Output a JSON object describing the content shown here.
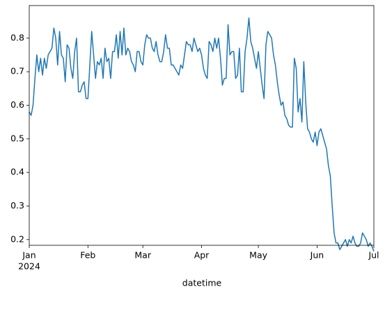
{
  "chart_data": {
    "type": "line",
    "xlabel": "datetime",
    "x_year_label": "2024",
    "grid": false,
    "x": [
      "2024-01-01",
      "2024-01-02",
      "2024-01-03",
      "2024-01-04",
      "2024-01-05",
      "2024-01-06",
      "2024-01-07",
      "2024-01-08",
      "2024-01-09",
      "2024-01-10",
      "2024-01-11",
      "2024-01-12",
      "2024-01-13",
      "2024-01-14",
      "2024-01-15",
      "2024-01-16",
      "2024-01-17",
      "2024-01-18",
      "2024-01-19",
      "2024-01-20",
      "2024-01-21",
      "2024-01-22",
      "2024-01-23",
      "2024-01-24",
      "2024-01-25",
      "2024-01-26",
      "2024-01-27",
      "2024-01-28",
      "2024-01-29",
      "2024-01-30",
      "2024-01-31",
      "2024-02-01",
      "2024-02-02",
      "2024-02-03",
      "2024-02-04",
      "2024-02-05",
      "2024-02-06",
      "2024-02-07",
      "2024-02-08",
      "2024-02-09",
      "2024-02-10",
      "2024-02-11",
      "2024-02-12",
      "2024-02-13",
      "2024-02-14",
      "2024-02-15",
      "2024-02-16",
      "2024-02-17",
      "2024-02-18",
      "2024-02-19",
      "2024-02-20",
      "2024-02-21",
      "2024-02-22",
      "2024-02-23",
      "2024-02-24",
      "2024-02-25",
      "2024-02-26",
      "2024-02-27",
      "2024-02-28",
      "2024-02-29",
      "2024-03-01",
      "2024-03-02",
      "2024-03-03",
      "2024-03-04",
      "2024-03-05",
      "2024-03-06",
      "2024-03-07",
      "2024-03-08",
      "2024-03-09",
      "2024-03-10",
      "2024-03-11",
      "2024-03-12",
      "2024-03-13",
      "2024-03-14",
      "2024-03-15",
      "2024-03-16",
      "2024-03-17",
      "2024-03-18",
      "2024-03-19",
      "2024-03-20",
      "2024-03-21",
      "2024-03-22",
      "2024-03-23",
      "2024-03-24",
      "2024-03-25",
      "2024-03-26",
      "2024-03-27",
      "2024-03-28",
      "2024-03-29",
      "2024-03-30",
      "2024-03-31",
      "2024-04-01",
      "2024-04-02",
      "2024-04-03",
      "2024-04-04",
      "2024-04-05",
      "2024-04-06",
      "2024-04-07",
      "2024-04-08",
      "2024-04-09",
      "2024-04-10",
      "2024-04-11",
      "2024-04-12",
      "2024-04-13",
      "2024-04-14",
      "2024-04-15",
      "2024-04-16",
      "2024-04-17",
      "2024-04-18",
      "2024-04-19",
      "2024-04-20",
      "2024-04-21",
      "2024-04-22",
      "2024-04-23",
      "2024-04-24",
      "2024-04-25",
      "2024-04-26",
      "2024-04-27",
      "2024-04-28",
      "2024-04-29",
      "2024-04-30",
      "2024-05-01",
      "2024-05-02",
      "2024-05-03",
      "2024-05-04",
      "2024-05-05",
      "2024-05-06",
      "2024-05-07",
      "2024-05-08",
      "2024-05-09",
      "2024-05-10",
      "2024-05-11",
      "2024-05-12",
      "2024-05-13",
      "2024-05-14",
      "2024-05-15",
      "2024-05-16",
      "2024-05-17",
      "2024-05-18",
      "2024-05-19",
      "2024-05-20",
      "2024-05-21",
      "2024-05-22",
      "2024-05-23",
      "2024-05-24",
      "2024-05-25",
      "2024-05-26",
      "2024-05-27",
      "2024-05-28",
      "2024-05-29",
      "2024-05-30",
      "2024-05-31",
      "2024-06-01",
      "2024-06-02",
      "2024-06-03",
      "2024-06-04",
      "2024-06-05",
      "2024-06-06",
      "2024-06-07",
      "2024-06-08",
      "2024-06-09",
      "2024-06-10",
      "2024-06-11",
      "2024-06-12",
      "2024-06-13",
      "2024-06-14",
      "2024-06-15",
      "2024-06-16",
      "2024-06-17",
      "2024-06-18",
      "2024-06-19",
      "2024-06-20",
      "2024-06-21",
      "2024-06-22",
      "2024-06-23",
      "2024-06-24",
      "2024-06-25",
      "2024-06-26",
      "2024-06-27",
      "2024-06-28",
      "2024-06-29",
      "2024-06-30",
      "2024-07-01"
    ],
    "series": [
      {
        "color": "#1f77b4",
        "values": [
          0.58,
          0.57,
          0.6,
          0.68,
          0.75,
          0.7,
          0.74,
          0.69,
          0.74,
          0.71,
          0.75,
          0.76,
          0.77,
          0.83,
          0.8,
          0.72,
          0.82,
          0.75,
          0.74,
          0.67,
          0.78,
          0.77,
          0.71,
          0.68,
          0.76,
          0.8,
          0.64,
          0.64,
          0.66,
          0.67,
          0.62,
          0.62,
          0.72,
          0.82,
          0.75,
          0.68,
          0.73,
          0.72,
          0.74,
          0.68,
          0.77,
          0.73,
          0.74,
          0.68,
          0.76,
          0.76,
          0.81,
          0.74,
          0.82,
          0.75,
          0.83,
          0.75,
          0.77,
          0.76,
          0.73,
          0.72,
          0.7,
          0.76,
          0.76,
          0.73,
          0.72,
          0.78,
          0.81,
          0.8,
          0.8,
          0.77,
          0.76,
          0.79,
          0.75,
          0.73,
          0.73,
          0.76,
          0.81,
          0.77,
          0.77,
          0.72,
          0.72,
          0.71,
          0.7,
          0.69,
          0.72,
          0.71,
          0.75,
          0.79,
          0.78,
          0.78,
          0.76,
          0.8,
          0.78,
          0.76,
          0.77,
          0.75,
          0.71,
          0.69,
          0.68,
          0.79,
          0.78,
          0.76,
          0.8,
          0.77,
          0.8,
          0.74,
          0.66,
          0.68,
          0.68,
          0.84,
          0.75,
          0.76,
          0.76,
          0.68,
          0.69,
          0.77,
          0.64,
          0.64,
          0.76,
          0.8,
          0.86,
          0.79,
          0.77,
          0.74,
          0.71,
          0.76,
          0.71,
          0.66,
          0.62,
          0.78,
          0.82,
          0.81,
          0.8,
          0.75,
          0.72,
          0.67,
          0.63,
          0.6,
          0.61,
          0.57,
          0.56,
          0.54,
          0.535,
          0.535,
          0.74,
          0.71,
          0.58,
          0.62,
          0.55,
          0.73,
          0.61,
          0.53,
          0.52,
          0.5,
          0.49,
          0.52,
          0.48,
          0.52,
          0.53,
          0.51,
          0.49,
          0.47,
          0.42,
          0.39,
          0.3,
          0.22,
          0.19,
          0.19,
          0.17,
          0.18,
          0.19,
          0.2,
          0.18,
          0.2,
          0.19,
          0.21,
          0.19,
          0.18,
          0.18,
          0.19,
          0.22,
          0.21,
          0.2,
          0.18,
          0.19,
          0.18,
          0.165
        ]
      }
    ],
    "xlim": [
      "2024-01-01",
      "2024-07-01"
    ],
    "xticks": [
      {
        "value": "2024-01-01",
        "label": "Jan"
      },
      {
        "value": "2024-02-01",
        "label": "Feb"
      },
      {
        "value": "2024-03-01",
        "label": "Mar"
      },
      {
        "value": "2024-04-01",
        "label": "Apr"
      },
      {
        "value": "2024-05-01",
        "label": "May"
      },
      {
        "value": "2024-06-01",
        "label": "Jun"
      },
      {
        "value": "2024-07-01",
        "label": "Jul"
      }
    ],
    "ylim": [
      0.183,
      0.897
    ],
    "yticks": [
      0.2,
      0.3,
      0.4,
      0.5,
      0.6,
      0.7,
      0.8
    ]
  }
}
